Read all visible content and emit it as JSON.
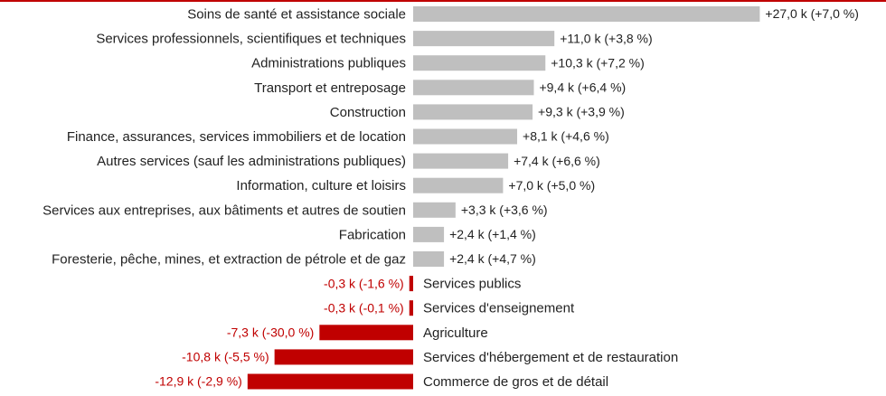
{
  "colors": {
    "positive": "#bfbfbf",
    "negative": "#c00000",
    "text": "#222222",
    "negative_text": "#c00000"
  },
  "chart_data": {
    "type": "bar",
    "orientation": "horizontal",
    "title": "",
    "xlabel": "",
    "ylabel": "",
    "grid": false,
    "unit": "k",
    "categories": [
      "Soins de santé et assistance sociale",
      "Services professionnels, scientifiques et techniques",
      "Administrations publiques",
      "Transport et entreposage",
      "Construction",
      "Finance, assurances, services immobiliers et de location",
      "Autres services (sauf les administrations publiques)",
      "Information, culture et loisirs",
      "Services aux entreprises, aux bâtiments et autres de soutien",
      "Fabrication",
      "Foresterie, pêche, mines, et extraction de pétrole et de gaz",
      "Services publics",
      "Services d'enseignement",
      "Agriculture",
      "Services d'hébergement et de restauration",
      "Commerce de gros et de détail"
    ],
    "values": [
      27.0,
      11.0,
      10.3,
      9.4,
      9.3,
      8.1,
      7.4,
      7.0,
      3.3,
      2.4,
      2.4,
      -0.3,
      -0.3,
      -7.3,
      -10.8,
      -12.9
    ],
    "data_labels": [
      "+27,0 k (+7,0 %)",
      "+11,0 k (+3,8 %)",
      "+10,3 k (+7,2 %)",
      "+9,4 k (+6,4 %)",
      "+9,3 k (+3,9 %)",
      "+8,1 k (+4,6 %)",
      "+7,4 k (+6,6 %)",
      "+7,0 k (+5,0 %)",
      "+3,3 k (+3,6 %)",
      "+2,4 k (+1,4 %)",
      "+2,4 k (+4,7 %)",
      "-0,3 k (-1,6 %)",
      "-0,3 k (-0,1 %)",
      "-7,3 k (-30,0 %)",
      "-10,8 k (-5,5 %)",
      "-12,9 k (-2,9 %)"
    ]
  }
}
